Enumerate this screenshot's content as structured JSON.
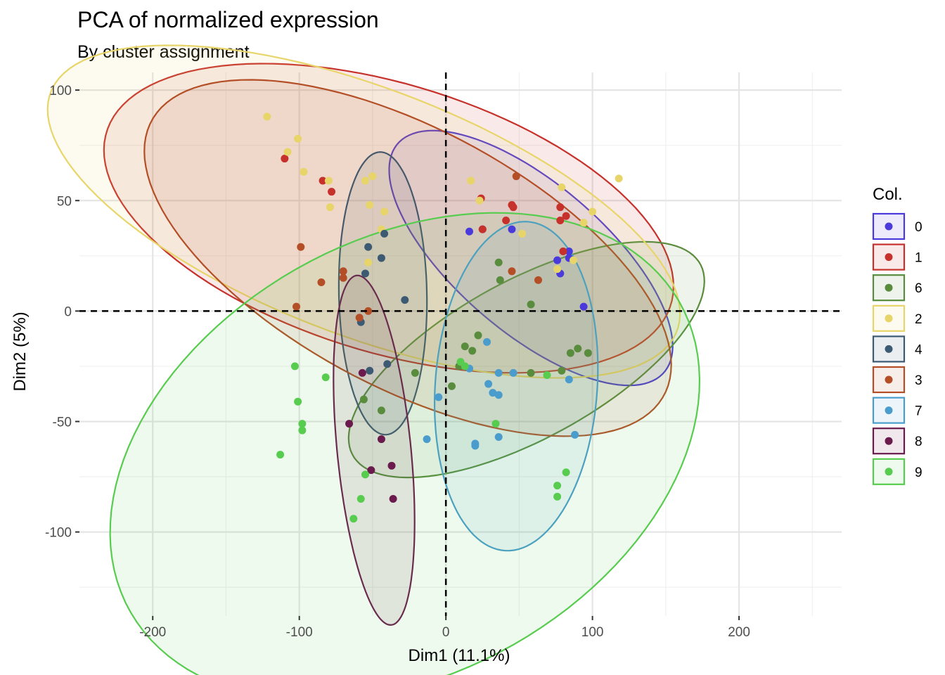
{
  "chart_data": {
    "type": "scatter",
    "title": "PCA of normalized expression",
    "subtitle": "By cluster assignment",
    "xlabel": "Dim1 (11.1%)",
    "ylabel": "Dim2 (5%)",
    "xlim": [
      -250,
      270
    ],
    "ylim": [
      -138,
      108
    ],
    "x_ticks": [
      -200,
      -100,
      0,
      100,
      200
    ],
    "y_ticks": [
      -100,
      -50,
      0,
      50,
      100
    ],
    "grid": true,
    "reference_lines": {
      "x": 0,
      "y": 0,
      "style": "dashed"
    },
    "legend": {
      "title": "Col.",
      "position": "right"
    },
    "series": [
      {
        "name": "0",
        "color": "#4a3adb",
        "ellipse": {
          "cx": 58,
          "cy": 24,
          "rx": 106,
          "ry": 38,
          "angle_deg": -26
        },
        "points": [
          [
            16,
            36
          ],
          [
            25,
            37
          ],
          [
            45,
            37
          ],
          [
            76,
            23
          ],
          [
            78,
            17
          ],
          [
            84,
            27
          ],
          [
            84,
            24
          ],
          [
            94,
            2
          ]
        ]
      },
      {
        "name": "1",
        "color": "#c7312b",
        "ellipse": {
          "cx": -39,
          "cy": 42,
          "rx": 197,
          "ry": 62,
          "angle_deg": -10
        },
        "points": [
          [
            -110,
            69
          ],
          [
            -84,
            59
          ],
          [
            -78,
            54
          ],
          [
            24,
            51
          ],
          [
            25,
            37
          ],
          [
            41,
            41
          ],
          [
            45,
            48
          ],
          [
            46,
            47
          ],
          [
            78,
            41
          ],
          [
            78,
            47
          ],
          [
            80,
            27
          ],
          [
            82,
            43
          ]
        ]
      },
      {
        "name": "6",
        "color": "#5a8c3e",
        "ellipse": {
          "cx": 55,
          "cy": -22,
          "rx": 127,
          "ry": 38,
          "angle_deg": 18
        },
        "points": [
          [
            4,
            -34
          ],
          [
            9,
            -25
          ],
          [
            13,
            -16
          ],
          [
            18,
            -18
          ],
          [
            22,
            -11
          ],
          [
            36,
            22
          ],
          [
            37,
            14
          ],
          [
            58,
            3
          ],
          [
            58,
            -28
          ],
          [
            79,
            -27
          ],
          [
            85,
            -19
          ],
          [
            90,
            -17
          ],
          [
            97,
            -19
          ],
          [
            -21,
            -28
          ],
          [
            -56,
            -40
          ],
          [
            -44,
            -45
          ]
        ]
      },
      {
        "name": "2",
        "color": "#e8d56a",
        "ellipse": {
          "cx": -56,
          "cy": 45,
          "rx": 221,
          "ry": 58,
          "angle_deg": -13
        },
        "points": [
          [
            -122,
            88
          ],
          [
            -101,
            78
          ],
          [
            -108,
            72
          ],
          [
            -97,
            63
          ],
          [
            -80,
            59
          ],
          [
            -79,
            47
          ],
          [
            -55,
            59
          ],
          [
            -50,
            61
          ],
          [
            -52,
            48
          ],
          [
            -42,
            45
          ],
          [
            -44,
            37
          ],
          [
            -53,
            22
          ],
          [
            17,
            59
          ],
          [
            23,
            50
          ],
          [
            52,
            35
          ],
          [
            79,
            56
          ],
          [
            76,
            19
          ],
          [
            87,
            23
          ],
          [
            94,
            40
          ],
          [
            100,
            45
          ],
          [
            118,
            60
          ]
        ]
      },
      {
        "name": "4",
        "color": "#3d5a73",
        "ellipse": {
          "cx": -43,
          "cy": 8,
          "rx": 64,
          "ry": 30,
          "angle_deg": -88
        },
        "points": [
          [
            -58,
            -5
          ],
          [
            -55,
            17
          ],
          [
            -53,
            29
          ],
          [
            -44,
            24
          ],
          [
            -42,
            35
          ],
          [
            -28,
            5
          ],
          [
            -52,
            -27
          ],
          [
            -40,
            -24
          ]
        ]
      },
      {
        "name": "3",
        "color": "#b34e26",
        "ellipse": {
          "cx": -26,
          "cy": 24,
          "rx": 187,
          "ry": 62,
          "angle_deg": -17
        },
        "points": [
          [
            -99,
            29
          ],
          [
            -102,
            2
          ],
          [
            -85,
            13
          ],
          [
            -70,
            15
          ],
          [
            -70,
            18
          ],
          [
            -53,
            0
          ],
          [
            -59,
            -3
          ],
          [
            48,
            61
          ],
          [
            45,
            18
          ],
          [
            63,
            14
          ]
        ]
      },
      {
        "name": "7",
        "color": "#4a9ccc",
        "ellipse": {
          "cx": 48,
          "cy": -34,
          "rx": 75,
          "ry": 55,
          "angle_deg": 80
        },
        "points": [
          [
            -5,
            -39
          ],
          [
            -13,
            -58
          ],
          [
            16,
            -26
          ],
          [
            20,
            -60
          ],
          [
            20,
            -61
          ],
          [
            28,
            -14
          ],
          [
            29,
            -33
          ],
          [
            32,
            -37
          ],
          [
            36,
            -28
          ],
          [
            36,
            -38
          ],
          [
            36,
            -57
          ],
          [
            46,
            -28
          ],
          [
            84,
            -31
          ],
          [
            88,
            -56
          ]
        ]
      },
      {
        "name": "8",
        "color": "#6b1a4e",
        "ellipse": {
          "cx": -49,
          "cy": -63,
          "rx": 80,
          "ry": 25,
          "angle_deg": -81
        },
        "points": [
          [
            -66,
            -51
          ],
          [
            -57,
            -28
          ],
          [
            -51,
            -72
          ],
          [
            -44,
            -58
          ],
          [
            -37,
            -70
          ],
          [
            -36,
            -85
          ]
        ]
      },
      {
        "name": "9",
        "color": "#57cc4f",
        "ellipse": {
          "cx": -28,
          "cy": -66,
          "rx": 205,
          "ry": 103,
          "angle_deg": 13
        },
        "points": [
          [
            -103,
            -25
          ],
          [
            -101,
            -41
          ],
          [
            -98,
            -51
          ],
          [
            -98,
            -54
          ],
          [
            -113,
            -65
          ],
          [
            -82,
            -30
          ],
          [
            -63,
            -94
          ],
          [
            -58,
            -85
          ],
          [
            -55,
            -74
          ],
          [
            10,
            -23
          ],
          [
            13,
            -25
          ],
          [
            34,
            -51
          ],
          [
            69,
            -29
          ],
          [
            76,
            -79
          ],
          [
            76,
            -84
          ],
          [
            82,
            -73
          ]
        ]
      }
    ]
  }
}
